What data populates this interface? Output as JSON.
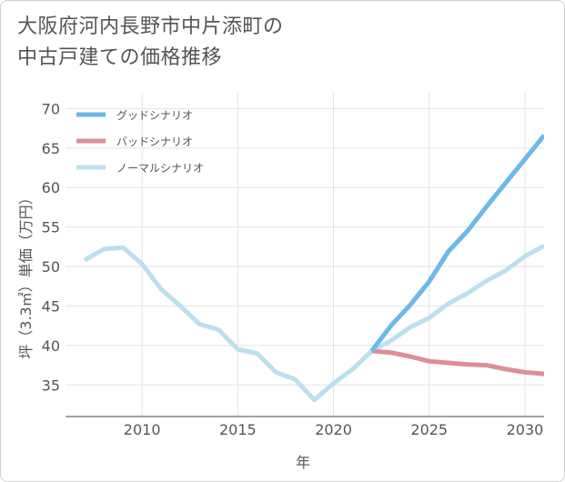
{
  "title": {
    "line1": "大阪府河内長野市中片添町の",
    "line2": "中古戸建ての価格推移"
  },
  "chart_data": {
    "type": "line",
    "xlabel": "年",
    "ylabel": "坪（3.3㎡）単価（万円）",
    "xlim": [
      2006,
      2031
    ],
    "ylim": [
      31,
      72
    ],
    "xticks": [
      2010,
      2015,
      2020,
      2025,
      2030
    ],
    "yticks": [
      35,
      40,
      45,
      50,
      55,
      60,
      65,
      70
    ],
    "grid": true,
    "legend_position": "top-left",
    "series": [
      {
        "name": "グッドシナリオ",
        "color": "#6cb8ea",
        "x": [
          2022,
          2023,
          2024,
          2025,
          2026,
          2027,
          2028,
          2029,
          2030,
          2031
        ],
        "values": [
          39.3,
          42.5,
          45.1,
          48.1,
          51.9,
          54.5,
          57.6,
          60.6,
          63.6,
          66.6
        ]
      },
      {
        "name": "バッドシナリオ",
        "color": "#de8d96",
        "x": [
          2022,
          2023,
          2024,
          2025,
          2026,
          2027,
          2028,
          2029,
          2030,
          2031
        ],
        "values": [
          39.3,
          39.1,
          38.6,
          38.0,
          37.8,
          37.6,
          37.5,
          37.0,
          36.6,
          36.4
        ]
      },
      {
        "name": "ノーマルシナリオ",
        "color": "#bcdfee",
        "x": [
          2007,
          2008,
          2009,
          2010,
          2011,
          2012,
          2013,
          2014,
          2015,
          2016,
          2017,
          2018,
          2019,
          2020,
          2021,
          2022,
          2023,
          2024,
          2025,
          2026,
          2027,
          2028,
          2029,
          2030,
          2031
        ],
        "values": [
          50.8,
          52.2,
          52.4,
          50.3,
          47.1,
          45.0,
          42.7,
          42.0,
          39.5,
          39.0,
          36.6,
          35.7,
          33.1,
          35.2,
          37.0,
          39.3,
          40.6,
          42.3,
          43.5,
          45.3,
          46.6,
          48.2,
          49.5,
          51.3,
          52.6
        ]
      }
    ]
  }
}
